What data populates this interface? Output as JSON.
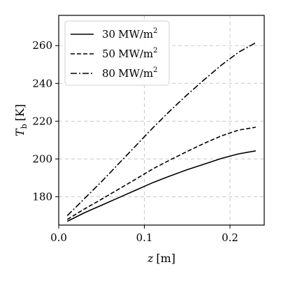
{
  "chart_data": {
    "type": "line",
    "xlabel_var": "z",
    "xlabel_unit": "[m]",
    "ylabel_var": "T",
    "ylabel_sub": "b",
    "ylabel_unit": "[K]",
    "xlim": [
      0.0,
      0.24
    ],
    "ylim": [
      165,
      276
    ],
    "xticks": [
      0.0,
      0.1,
      0.2
    ],
    "xtick_labels": [
      "0.0",
      "0.1",
      "0.2"
    ],
    "yticks": [
      180,
      200,
      220,
      240,
      260
    ],
    "ytick_labels": [
      "180",
      "200",
      "220",
      "240",
      "260"
    ],
    "grid": true,
    "legend": "top-left",
    "series": [
      {
        "name": "30 MW/m²",
        "label_num": "30",
        "label_unit": "MW/m",
        "label_sup": "2",
        "style": "solid",
        "x": [
          0.01,
          0.03,
          0.05,
          0.07,
          0.09,
          0.11,
          0.13,
          0.15,
          0.17,
          0.19,
          0.21,
          0.23
        ],
        "y": [
          167,
          171.5,
          175.5,
          179.5,
          183.5,
          187.5,
          191,
          194.3,
          197.3,
          200.3,
          202.7,
          204.3
        ]
      },
      {
        "name": "50 MW/m²",
        "label_num": "50",
        "label_unit": "MW/m",
        "label_sup": "2",
        "style": "dashed",
        "x": [
          0.01,
          0.03,
          0.05,
          0.07,
          0.09,
          0.11,
          0.13,
          0.15,
          0.17,
          0.19,
          0.21,
          0.23
        ],
        "y": [
          168,
          173.5,
          178.7,
          184,
          189.3,
          194.8,
          199.5,
          204,
          208.3,
          212.2,
          215.3,
          216.8
        ]
      },
      {
        "name": "80 MW/m²",
        "label_num": "80",
        "label_unit": "MW/m",
        "label_sup": "2",
        "style": "dashdot",
        "x": [
          0.01,
          0.03,
          0.05,
          0.07,
          0.09,
          0.11,
          0.13,
          0.15,
          0.17,
          0.19,
          0.21,
          0.23
        ],
        "y": [
          170,
          179,
          188,
          197.5,
          207,
          216.5,
          225.5,
          234,
          242,
          249.7,
          256.5,
          261.5
        ]
      }
    ]
  }
}
